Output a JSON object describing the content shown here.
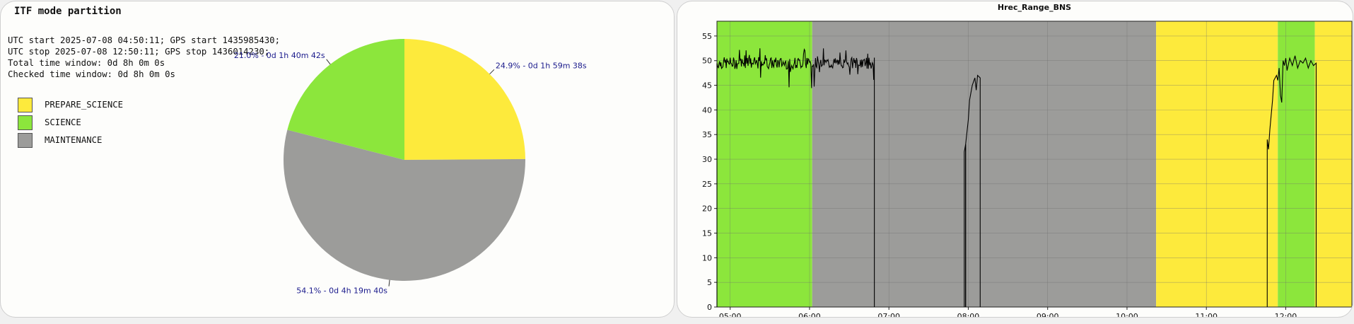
{
  "left_panel": {
    "title": "ITF mode partition",
    "info_lines": [
      "UTC start 2025-07-08 04:50:11; GPS start 1435985430;",
      "UTC stop 2025-07-08 12:50:11; GPS stop 1436014230;",
      "Total time window: 0d 8h 0m 0s",
      "Checked time window: 0d 8h 0m 0s"
    ],
    "legend": [
      {
        "label": "PREPARE_SCIENCE",
        "color": "#fdea3c"
      },
      {
        "label": "SCIENCE",
        "color": "#8ce63c"
      },
      {
        "label": "MAINTENANCE",
        "color": "#9c9c9a"
      }
    ]
  },
  "chart_data": [
    {
      "type": "pie",
      "title": "ITF mode partition",
      "slices": [
        {
          "category": "PREPARE_SCIENCE",
          "percent": 24.9,
          "label": "24.9% - 0d 1h 59m 38s",
          "color": "#fdea3c"
        },
        {
          "category": "MAINTENANCE",
          "percent": 54.1,
          "label": "54.1% - 0d 4h 19m 40s",
          "color": "#9c9c9a"
        },
        {
          "category": "SCIENCE",
          "percent": 21.0,
          "label": "21.0% - 0d 1h 40m 42s",
          "color": "#8ce63c"
        }
      ],
      "label_color": "#1a1a8c"
    },
    {
      "type": "line",
      "title": "Hrec_Range_BNS",
      "xlim": [
        "04:50",
        "12:50"
      ],
      "ylim": [
        0,
        58
      ],
      "yticks": [
        0,
        5,
        10,
        15,
        20,
        25,
        30,
        35,
        40,
        45,
        50,
        55
      ],
      "xticks": [
        "05:00",
        "06:00",
        "07:00",
        "08:00",
        "09:00",
        "10:00",
        "11:00",
        "12:00"
      ],
      "grid": true,
      "background_segments": [
        {
          "start": "04:50",
          "end": "06:02",
          "state": "SCIENCE",
          "color": "#8ce63c"
        },
        {
          "start": "06:02",
          "end": "10:22",
          "state": "MAINTENANCE",
          "color": "#9c9c9a"
        },
        {
          "start": "10:22",
          "end": "11:54",
          "state": "PREPARE_SCIENCE",
          "color": "#fdea3c"
        },
        {
          "start": "11:54",
          "end": "12:22",
          "state": "SCIENCE",
          "color": "#8ce63c"
        },
        {
          "start": "12:22",
          "end": "12:50",
          "state": "PREPARE_SCIENCE",
          "color": "#fdea3c"
        }
      ],
      "series": [
        {
          "color": "#000000",
          "segments": [
            {
              "start": "04:50",
              "end": "06:49",
              "level": 49.5,
              "noise": 1.2
            },
            {
              "start": "07:57",
              "end": "07:58",
              "points": [
                [
                  "07:57",
                  31.5
                ],
                [
                  "07:58",
                  33
                ]
              ]
            },
            {
              "start": "07:58",
              "end": "08:09",
              "points": [
                [
                  "07:58",
                  33
                ],
                [
                  "08:00",
                  38
                ],
                [
                  "08:01",
                  42
                ],
                [
                  "08:03",
                  45
                ],
                [
                  "08:05",
                  46.5
                ],
                [
                  "08:06",
                  44
                ],
                [
                  "08:07",
                  47
                ],
                [
                  "08:09",
                  46.5
                ]
              ]
            },
            {
              "start": "11:46",
              "end": "12:23",
              "points": [
                [
                  "11:46",
                  34
                ],
                [
                  "11:47",
                  32
                ],
                [
                  "11:48",
                  36
                ],
                [
                  "11:50",
                  42
                ],
                [
                  "11:51",
                  46
                ],
                [
                  "11:53",
                  47
                ],
                [
                  "11:54",
                  46
                ],
                [
                  "11:55",
                  48.5
                ],
                [
                  "11:56",
                  43
                ],
                [
                  "11:57",
                  41.5
                ],
                [
                  "11:58",
                  50
                ],
                [
                  "11:59",
                  49
                ],
                [
                  "12:00",
                  50.5
                ],
                [
                  "12:01",
                  48
                ],
                [
                  "12:03",
                  50.5
                ],
                [
                  "12:05",
                  49
                ],
                [
                  "12:07",
                  51
                ],
                [
                  "12:09",
                  48.5
                ],
                [
                  "12:11",
                  50
                ],
                [
                  "12:13",
                  49.5
                ],
                [
                  "12:15",
                  50.5
                ],
                [
                  "12:17",
                  48.5
                ],
                [
                  "12:19",
                  50
                ],
                [
                  "12:21",
                  49
                ],
                [
                  "12:23",
                  49.5
                ]
              ]
            }
          ]
        }
      ]
    }
  ]
}
